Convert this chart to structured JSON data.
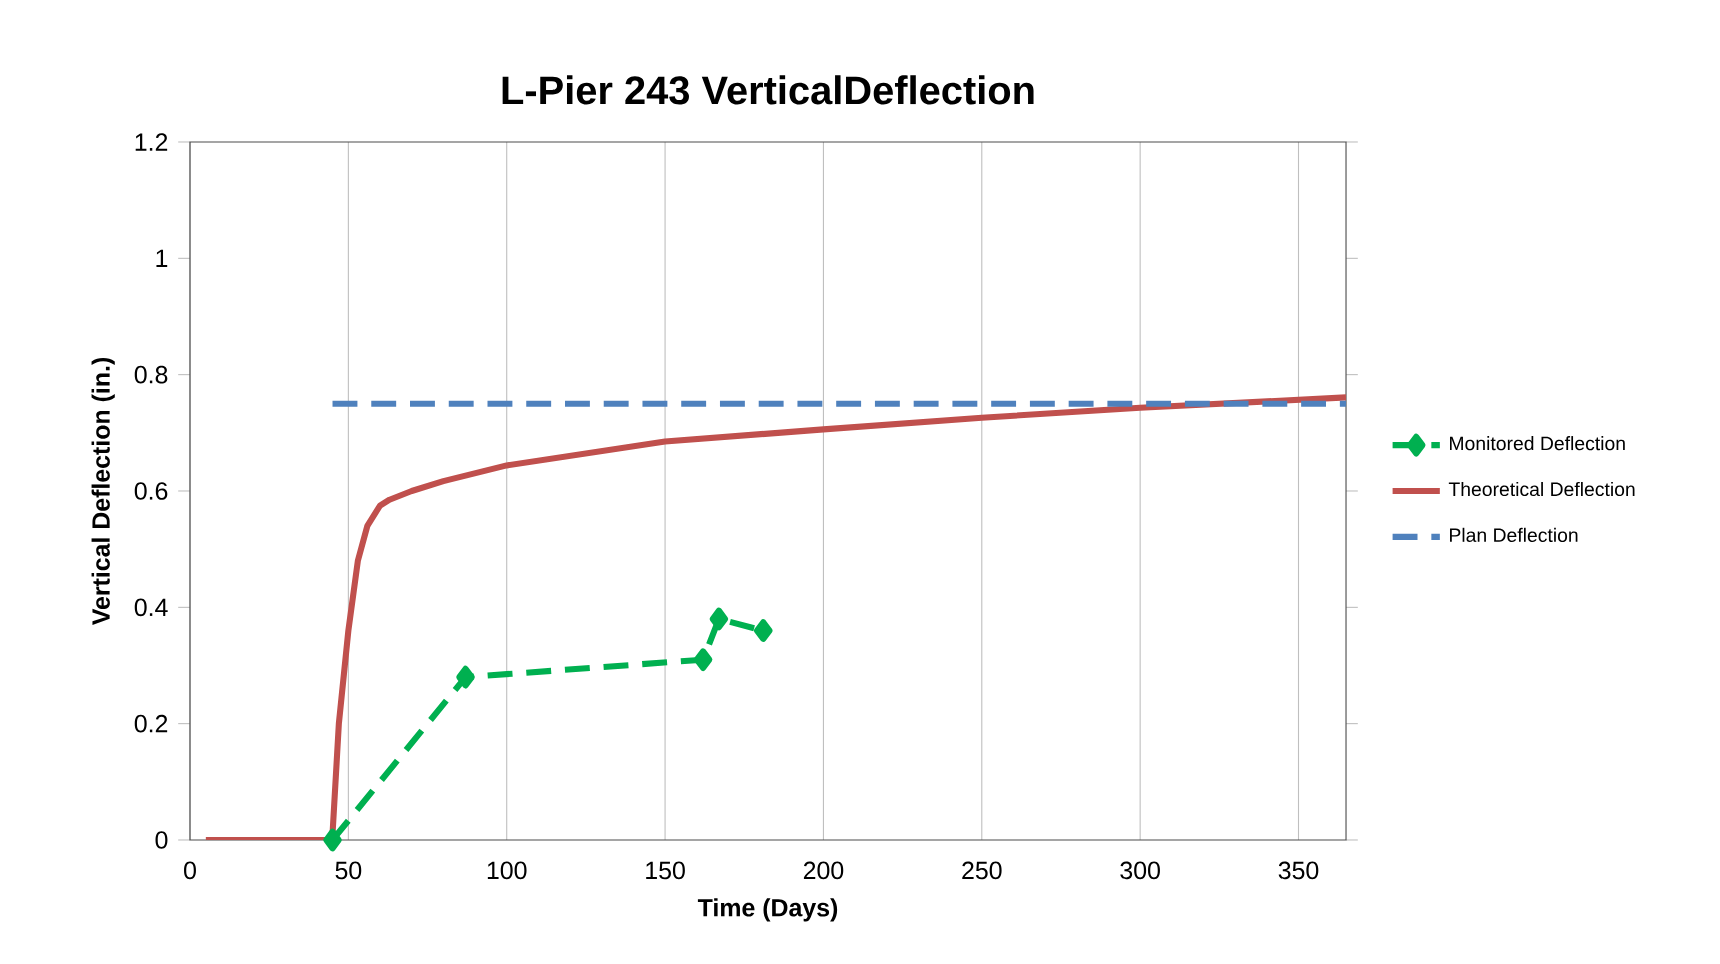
{
  "chart_data": {
    "type": "line",
    "title": "L-Pier 243 VerticalDeflection",
    "xlabel": "Time (Days)",
    "ylabel": "Vertical Deflection (in.)",
    "xlim": [
      0,
      365
    ],
    "ylim": [
      0,
      1.2
    ],
    "xticks": [
      0,
      50,
      100,
      150,
      200,
      250,
      300,
      350
    ],
    "yticks": [
      0,
      0.2,
      0.4,
      0.6,
      0.8,
      1,
      1.2
    ],
    "grid": "x",
    "legend": "right",
    "series": [
      {
        "name": "Monitored Deflection",
        "color": "#00b050",
        "line_style": "dashed",
        "marker": "diamond",
        "x": [
          45,
          87,
          162,
          167,
          181
        ],
        "values": [
          0,
          0.28,
          0.31,
          0.38,
          0.36
        ]
      },
      {
        "name": "Theoretical Deflection",
        "color": "#c0504d",
        "line_style": "solid",
        "marker": "none",
        "x": [
          5,
          44,
          45,
          47,
          50,
          53,
          56,
          60,
          63,
          70,
          80,
          100,
          150,
          200,
          250,
          300,
          365
        ],
        "values": [
          0,
          0,
          0.01,
          0.2,
          0.36,
          0.48,
          0.54,
          0.575,
          0.585,
          0.6,
          0.617,
          0.644,
          0.685,
          0.706,
          0.726,
          0.743,
          0.761
        ]
      },
      {
        "name": "Plan Deflection",
        "color": "#4f81bd",
        "line_style": "dashed",
        "marker": "none",
        "x": [
          45,
          365
        ],
        "values": [
          0.75,
          0.75
        ]
      }
    ]
  }
}
